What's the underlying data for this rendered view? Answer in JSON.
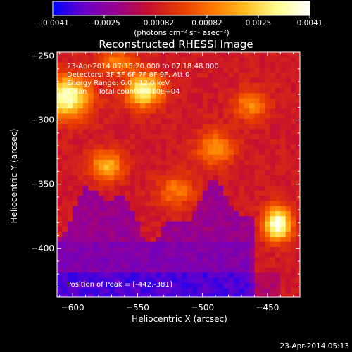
{
  "chart_data": {
    "type": "heatmap",
    "title": "Reconstructed RHESSI Image",
    "xlabel": "Heliocentric X (arcsec)",
    "ylabel": "Heliocentric Y (arcsec)",
    "xlim": [
      -612,
      -425
    ],
    "ylim": [
      -438,
      -247
    ],
    "x_ticks": [
      -600,
      -550,
      -500,
      -450
    ],
    "x_tick_labels": [
      "−600",
      "−550",
      "−500",
      "−450"
    ],
    "y_ticks": [
      -250,
      -300,
      -350,
      -400
    ],
    "y_tick_labels": [
      "−250",
      "−300",
      "−350",
      "−400"
    ],
    "colorbar": {
      "range": [
        -0.0041,
        0.0041
      ],
      "tick_labels": [
        "−0.0041",
        "−0.0025",
        "−0.00082",
        "0.00082",
        "0.0025",
        "0.0041"
      ],
      "unit_label": "(photons cm⁻² s⁻¹ asec⁻²)",
      "colormap": [
        "#0000ff",
        "#6a00c8",
        "#9a008c",
        "#c8102e",
        "#e83c00",
        "#ff7a00",
        "#ffbf20",
        "#ffff90",
        "#ffffff"
      ]
    },
    "annotations": [
      "23-Apr-2014 07:15:20.000 to 07:18:48.000",
      "Detectors: 3F 5F 6F 7F 8F 9F, Att 0",
      "Energy Range: 6.0 - 12.0 keV",
      "Clean     Total counts: 4.10E+04"
    ],
    "peak_label": "Position of Peak = [-442,-381]",
    "peak": {
      "x": -442,
      "y": -381
    },
    "sources": [
      {
        "x": -442,
        "y": -381,
        "sx": 7,
        "sy": 9,
        "amp": 1.0
      },
      {
        "x": -604,
        "y": -282,
        "sx": 12,
        "sy": 11,
        "amp": 0.9
      },
      {
        "x": -545,
        "y": -277,
        "sx": 10,
        "sy": 9,
        "amp": 0.8
      },
      {
        "x": -574,
        "y": -336,
        "sx": 9,
        "sy": 8,
        "amp": 0.55
      },
      {
        "x": -490,
        "y": -322,
        "sx": 10,
        "sy": 9,
        "amp": 0.45
      },
      {
        "x": -463,
        "y": -288,
        "sx": 9,
        "sy": 8,
        "amp": 0.4
      },
      {
        "x": -520,
        "y": -355,
        "sx": 10,
        "sy": 9,
        "amp": 0.35
      },
      {
        "x": -565,
        "y": -255,
        "sx": 10,
        "sy": 6,
        "amp": 0.4
      }
    ]
  },
  "footer_timestamp": "23-Apr-2014 05:13"
}
